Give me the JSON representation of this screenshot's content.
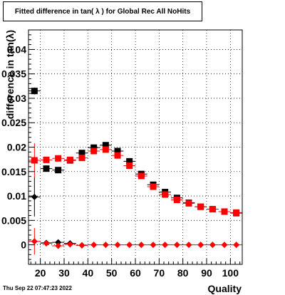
{
  "title": "Fitted difference in tan( λ ) for Global Rec All NoHits",
  "timestamp": "Thu Sep 22 07:47:23 2022",
  "chart_data": {
    "type": "scatter",
    "title": "Fitted difference in tan( λ ) for Global Rec All NoHits",
    "xlabel": "Quality",
    "ylabel": "difference in tan(λ)",
    "xlim": [
      15,
      105
    ],
    "ylim": [
      -0.004,
      0.044
    ],
    "xticks": [
      "20",
      "30",
      "40",
      "50",
      "60",
      "70",
      "80",
      "90",
      "100"
    ],
    "yticks": [
      "0",
      "0.005",
      "0.01",
      "0.015",
      "0.02",
      "0.025",
      "0.03",
      "0.035",
      "0.04"
    ],
    "grid": true,
    "series": [
      {
        "marker": "square",
        "color": "#000000",
        "x": [
          17.5,
          22.5,
          27.5,
          32.5,
          37.5,
          42.5,
          47.5,
          52.5,
          57.5,
          62.5,
          67.5,
          72.5,
          77.5,
          82.5,
          87.5,
          92.5,
          97.5,
          102.5
        ],
        "y": [
          0.0315,
          0.0156,
          0.0153,
          0.0173,
          0.0188,
          0.0199,
          0.0204,
          0.0192,
          0.0171,
          0.0145,
          0.0123,
          0.0108,
          0.0096,
          0.0086,
          0.0078,
          0.0073,
          0.0068,
          0.0065
        ],
        "yerr": [
          0.0007,
          0.0003,
          0.0003,
          0.0003,
          0.0003,
          0.0003,
          0.0003,
          0.0003,
          0.0003,
          0.0003,
          0.0003,
          0.0003,
          0.0003,
          0.0003,
          0.0003,
          0.0003,
          0.0003,
          0.0003
        ]
      },
      {
        "marker": "square",
        "color": "#ff0000",
        "x": [
          17.5,
          22.5,
          27.5,
          32.5,
          37.5,
          42.5,
          47.5,
          52.5,
          57.5,
          62.5,
          67.5,
          72.5,
          77.5,
          82.5,
          87.5,
          92.5,
          97.5,
          102.5
        ],
        "y": [
          0.0173,
          0.0174,
          0.0177,
          0.0174,
          0.0178,
          0.0192,
          0.0195,
          0.0183,
          0.0162,
          0.0141,
          0.0119,
          0.0103,
          0.0092,
          0.0085,
          0.0078,
          0.0073,
          0.0068,
          0.0066
        ],
        "yerr": [
          0.0035,
          0.0006,
          0.0004,
          0.0004,
          0.0004,
          0.0004,
          0.0004,
          0.0004,
          0.0004,
          0.0003,
          0.0003,
          0.0003,
          0.0003,
          0.0003,
          0.0003,
          0.0003,
          0.0003,
          0.0003
        ]
      },
      {
        "marker": "diamond",
        "color": "#000000",
        "x": [
          17.5,
          22.5,
          27.5,
          32.5,
          37.5
        ],
        "y": [
          0.0098,
          0.0004,
          0.0005,
          0.0003,
          -0.0001
        ],
        "yerr": [
          0.004,
          0.0003,
          0.0003,
          0.0003,
          0.0003
        ]
      },
      {
        "marker": "diamond",
        "color": "#ff0000",
        "x": [
          17.5,
          22.5,
          27.5,
          32.5,
          37.5,
          42.5,
          47.5,
          52.5,
          57.5,
          62.5,
          67.5,
          72.5,
          77.5,
          82.5,
          87.5,
          92.5,
          97.5,
          102.5
        ],
        "y": [
          0.0007,
          0.0003,
          -0.0002,
          0.0001,
          -0.0001,
          0.0,
          0.0,
          0.0,
          0.0,
          0.0,
          0.0,
          0.0,
          0.0,
          0.0,
          0.0,
          0.0,
          0.0,
          0.0
        ],
        "yerr": [
          0.0027,
          0.0004,
          0.0004,
          0.0004,
          0.0003,
          0.0003,
          0.0003,
          0.0003,
          0.0003,
          0.0003,
          0.0003,
          0.0003,
          0.0003,
          0.0003,
          0.0003,
          0.0003,
          0.0003,
          0.0003
        ]
      }
    ]
  }
}
